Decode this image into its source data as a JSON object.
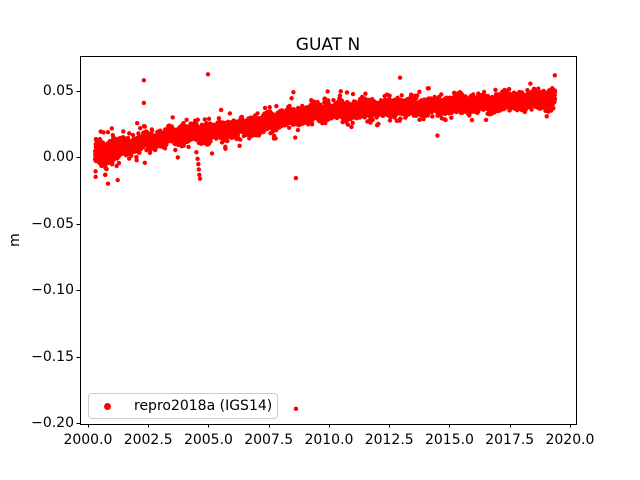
{
  "figure": {
    "title": "GUAT N",
    "ylabel": "m"
  },
  "legend": {
    "label": "repro2018a (IGS14)",
    "marker_color": "#ff0000",
    "position": "lower left"
  },
  "chart_data": {
    "type": "scatter",
    "title": "GUAT N",
    "xlabel": "",
    "ylabel": "m",
    "series_name": "repro2018a (IGS14)",
    "marker_color": "#ff0000",
    "marker_radius_px": 2.2,
    "axis_color": "#000000",
    "grid": false,
    "legend_position": "lower left",
    "xlim": [
      1999.67,
      2020.25
    ],
    "ylim": [
      -0.2004,
      0.0763
    ],
    "x_ticks": [
      2000.0,
      2002.5,
      2005.0,
      2007.5,
      2010.0,
      2012.5,
      2015.0,
      2017.5,
      2020.0
    ],
    "x_tick_labels": [
      "2000.0",
      "2002.5",
      "2005.0",
      "2007.5",
      "2010.0",
      "2012.5",
      "2015.0",
      "2017.5",
      "2020.0"
    ],
    "y_ticks": [
      0.05,
      0.0,
      -0.05,
      -0.1,
      -0.15,
      -0.2
    ],
    "y_tick_labels": [
      "0.05",
      "0.00",
      "−0.05",
      "−0.10",
      "−0.15",
      "−0.20"
    ],
    "data_start_year": 2000.3,
    "data_end_year": 2019.38,
    "points_per_year": 365,
    "noise_std_m": 0.0028,
    "early_noise_factor": 1.5,
    "early_noise_until": 2001.3,
    "annual_amplitude_m": 0.0012,
    "semiannual_amplitude_m": 0.0008,
    "trend_anchors": [
      [
        2000.3,
        0.002
      ],
      [
        2000.7,
        0.003
      ],
      [
        2001.2,
        0.006
      ],
      [
        2001.6,
        0.008
      ],
      [
        2002.0,
        0.01
      ],
      [
        2002.5,
        0.012
      ],
      [
        2003.0,
        0.014
      ],
      [
        2003.7,
        0.017
      ],
      [
        2004.5,
        0.018
      ],
      [
        2005.3,
        0.019
      ],
      [
        2006.2,
        0.022
      ],
      [
        2007.0,
        0.024
      ],
      [
        2007.9,
        0.0285
      ],
      [
        2008.7,
        0.031
      ],
      [
        2009.5,
        0.033
      ],
      [
        2010.3,
        0.0355
      ],
      [
        2011.1,
        0.036
      ],
      [
        2011.9,
        0.037
      ],
      [
        2012.8,
        0.0375
      ],
      [
        2013.6,
        0.038
      ],
      [
        2014.4,
        0.0385
      ],
      [
        2015.2,
        0.04
      ],
      [
        2016.0,
        0.0405
      ],
      [
        2016.8,
        0.0415
      ],
      [
        2017.6,
        0.0425
      ],
      [
        2018.4,
        0.0435
      ],
      [
        2019.38,
        0.0445
      ]
    ],
    "outliers": [
      [
        2002.32,
        0.058
      ],
      [
        2002.32,
        0.041
      ],
      [
        2002.33,
        0.0235
      ],
      [
        2002.36,
        -0.004
      ],
      [
        2003.73,
        0.0
      ],
      [
        2004.5,
        0.004
      ],
      [
        2004.55,
        -0.001
      ],
      [
        2004.58,
        -0.005
      ],
      [
        2004.6,
        -0.009
      ],
      [
        2004.62,
        -0.013
      ],
      [
        2004.65,
        -0.016
      ],
      [
        2004.98,
        0.0625
      ],
      [
        2005.7,
        0.008
      ],
      [
        2008.6,
        0.015
      ],
      [
        2008.63,
        -0.0155
      ],
      [
        2008.63,
        -0.189
      ],
      [
        2012.95,
        0.06
      ],
      [
        2012.97,
        0.029
      ],
      [
        2014.5,
        0.0165
      ]
    ]
  }
}
